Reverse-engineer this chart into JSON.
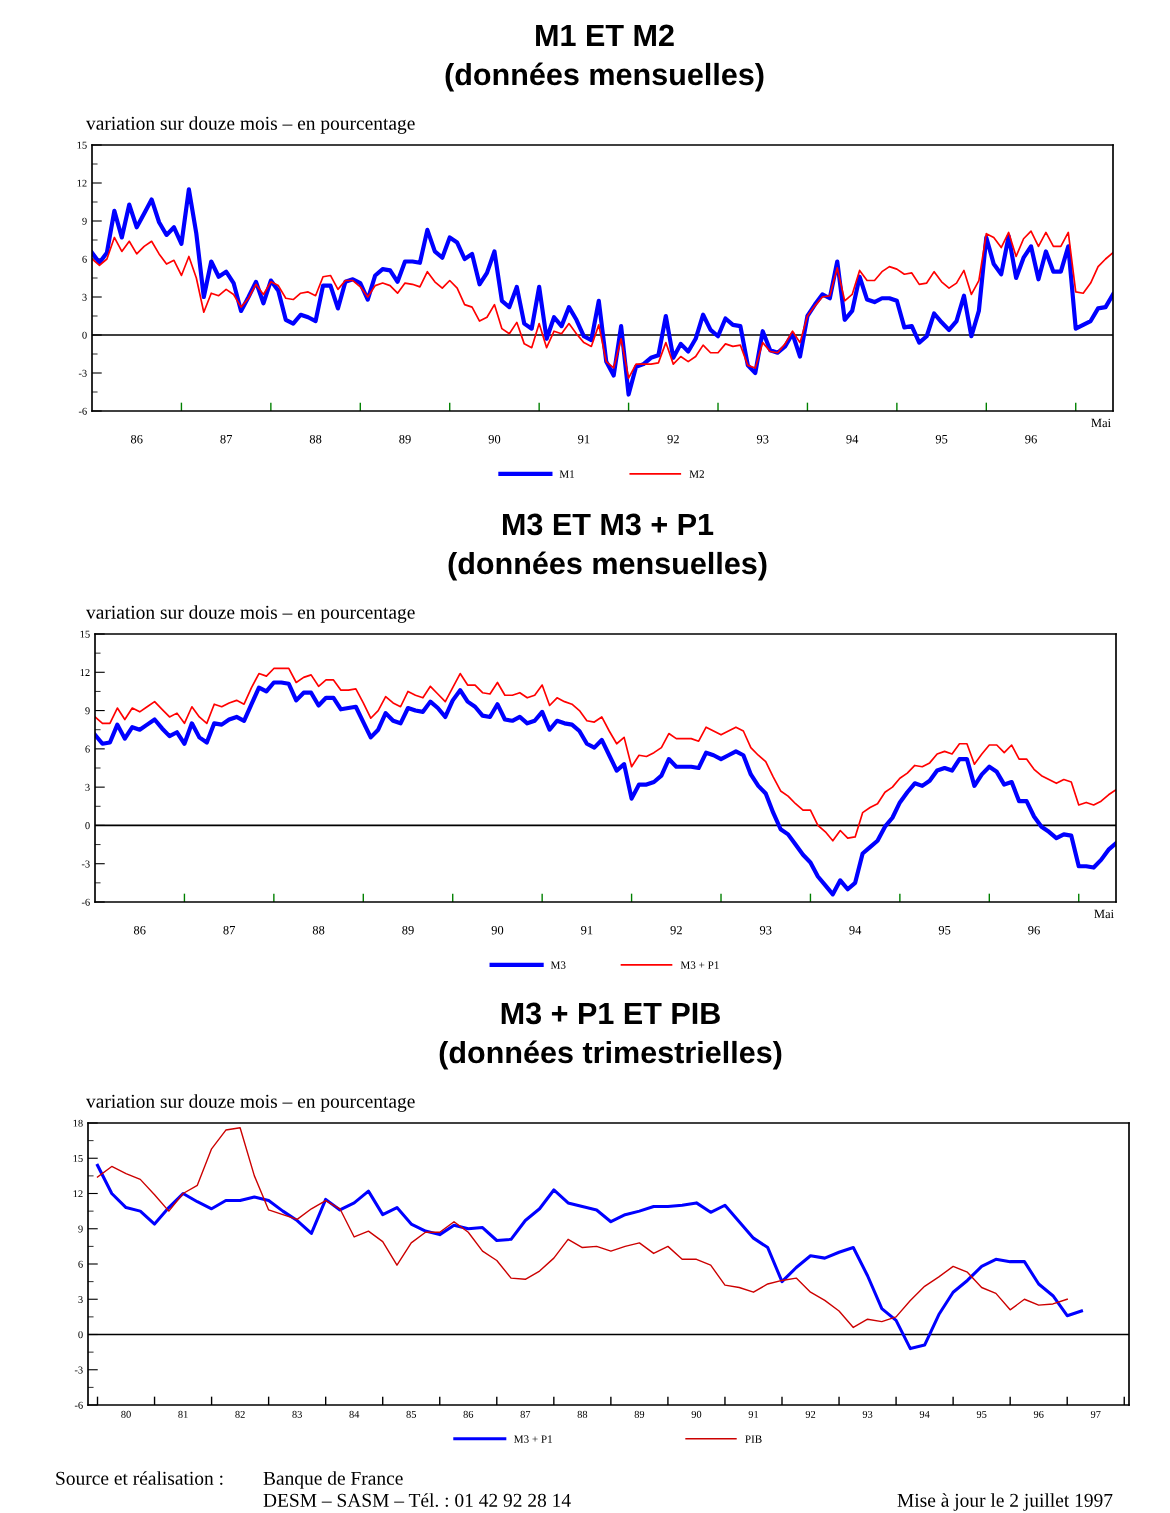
{
  "chart_data": [
    {
      "type": "line",
      "title": "M1 ET M2",
      "subtitle": "(données mensuelles)",
      "ylabel": "variation sur douze mois – en pourcentage",
      "x": [
        "1985-12",
        "1986-01",
        "1986-02",
        "1986-03",
        "1986-04",
        "1986-05",
        "1986-06",
        "1986-07",
        "1986-08",
        "1986-09",
        "1986-10",
        "1986-11",
        "1986-12",
        "1987-01",
        "1987-02",
        "1987-03",
        "1987-04",
        "1987-05",
        "1987-06",
        "1987-07",
        "1987-08",
        "1987-09",
        "1987-10",
        "1987-11",
        "1987-12",
        "1988-01",
        "1988-02",
        "1988-03",
        "1988-04",
        "1988-05",
        "1988-06",
        "1988-07",
        "1988-08",
        "1988-09",
        "1988-10",
        "1988-11",
        "1988-12",
        "1989-01",
        "1989-02",
        "1989-03",
        "1989-04",
        "1989-05",
        "1989-06",
        "1989-07",
        "1989-08",
        "1989-09",
        "1989-10",
        "1989-11",
        "1989-12",
        "1990-01",
        "1990-02",
        "1990-03",
        "1990-04",
        "1990-05",
        "1990-06",
        "1990-07",
        "1990-08",
        "1990-09",
        "1990-10",
        "1990-11",
        "1990-12",
        "1991-01",
        "1991-02",
        "1991-03",
        "1991-04",
        "1991-05",
        "1991-06",
        "1991-07",
        "1991-08",
        "1991-09",
        "1991-10",
        "1991-11",
        "1991-12",
        "1992-01",
        "1992-02",
        "1992-03",
        "1992-04",
        "1992-05",
        "1992-06",
        "1992-07",
        "1992-08",
        "1992-09",
        "1992-10",
        "1992-11",
        "1992-12",
        "1993-01",
        "1993-02",
        "1993-03",
        "1993-04",
        "1993-05",
        "1993-06",
        "1993-07",
        "1993-08",
        "1993-09",
        "1993-10",
        "1993-11",
        "1993-12",
        "1994-01",
        "1994-02",
        "1994-03",
        "1994-04",
        "1994-05",
        "1994-06",
        "1994-07",
        "1994-08",
        "1994-09",
        "1994-10",
        "1994-11",
        "1994-12",
        "1995-01",
        "1995-02",
        "1995-03",
        "1995-04",
        "1995-05",
        "1995-06",
        "1995-07",
        "1995-08",
        "1995-09",
        "1995-10",
        "1995-11",
        "1995-12",
        "1996-01",
        "1996-02",
        "1996-03",
        "1996-04",
        "1996-05",
        "1996-06",
        "1996-07",
        "1996-08",
        "1996-09",
        "1996-10",
        "1996-11",
        "1996-12",
        "1997-01",
        "1997-02",
        "1997-03",
        "1997-04",
        "1997-05"
      ],
      "series": [
        {
          "name": "M1",
          "color": "#0000ff",
          "values": [
            6.5,
            5.7,
            6.5,
            9.8,
            7.7,
            10.3,
            8.5,
            9.6,
            10.7,
            8.9,
            7.9,
            8.5,
            7.2,
            11.5,
            8.0,
            3.0,
            5.8,
            4.6,
            5.0,
            4.1,
            1.9,
            3.0,
            4.2,
            2.5,
            4.3,
            3.5,
            1.2,
            0.9,
            1.6,
            1.4,
            1.1,
            3.9,
            3.9,
            2.1,
            4.2,
            4.4,
            4.1,
            2.8,
            4.7,
            5.2,
            5.1,
            4.2,
            5.8,
            5.8,
            5.7,
            8.3,
            6.6,
            6.1,
            7.7,
            7.3,
            6.0,
            6.4,
            4.0,
            4.9,
            6.6,
            2.7,
            2.2,
            3.8,
            0.9,
            0.5,
            3.8,
            -0.3,
            1.4,
            0.7,
            2.2,
            1.2,
            -0.1,
            -0.4,
            2.7,
            -2.1,
            -3.2,
            0.7,
            -4.7,
            -2.5,
            -2.3,
            -1.8,
            -1.6,
            1.5,
            -1.8,
            -0.7,
            -1.3,
            -0.3,
            1.6,
            0.4,
            -0.1,
            1.3,
            0.8,
            0.7,
            -2.4,
            -3.0,
            0.3,
            -1.2,
            -1.4,
            -0.9,
            0.1,
            -1.7,
            1.5,
            2.4,
            3.2,
            2.9,
            5.8,
            1.2,
            1.9,
            4.6,
            2.8,
            2.6,
            2.9,
            2.9,
            2.7,
            0.6,
            0.7,
            -0.6,
            -0.1,
            1.7,
            1.0,
            0.4,
            1.1,
            3.1,
            -0.1,
            1.9,
            7.7,
            5.6,
            4.8,
            7.8,
            4.5,
            6.1,
            7.0,
            4.4,
            6.6,
            5.0,
            5.0,
            7.0,
            0.5,
            0.8,
            1.1,
            2.1,
            2.2,
            3.2
          ]
        },
        {
          "name": "M2",
          "color": "#ff0000",
          "values": [
            6.0,
            5.5,
            6.0,
            7.7,
            6.6,
            7.4,
            6.4,
            7.0,
            7.4,
            6.4,
            5.6,
            5.9,
            4.7,
            6.2,
            4.5,
            1.8,
            3.3,
            3.1,
            3.6,
            3.2,
            2.2,
            2.9,
            4.0,
            3.2,
            4.2,
            3.9,
            2.9,
            2.8,
            3.3,
            3.4,
            3.1,
            4.6,
            4.7,
            3.6,
            4.3,
            4.3,
            3.8,
            3.0,
            3.9,
            4.1,
            3.9,
            3.3,
            4.1,
            4.0,
            3.8,
            5.0,
            4.2,
            3.7,
            4.3,
            3.7,
            2.4,
            2.2,
            1.1,
            1.4,
            2.4,
            0.5,
            0.1,
            1.0,
            -0.7,
            -1.0,
            0.9,
            -1.0,
            0.3,
            0.1,
            0.9,
            0.1,
            -0.6,
            -0.9,
            0.8,
            -2.1,
            -2.6,
            -0.3,
            -3.4,
            -2.3,
            -2.3,
            -2.3,
            -2.2,
            -0.6,
            -2.3,
            -1.7,
            -2.1,
            -1.7,
            -0.8,
            -1.4,
            -1.4,
            -0.7,
            -0.9,
            -0.8,
            -2.4,
            -2.6,
            -0.6,
            -1.3,
            -1.4,
            -0.7,
            0.3,
            -0.6,
            1.5,
            2.3,
            3.0,
            3.1,
            5.3,
            2.7,
            3.2,
            5.1,
            4.3,
            4.3,
            5.0,
            5.4,
            5.2,
            4.8,
            4.9,
            4.0,
            4.1,
            5.0,
            4.2,
            3.7,
            4.1,
            5.1,
            3.2,
            4.3,
            8.0,
            7.7,
            6.9,
            8.1,
            6.2,
            7.6,
            8.2,
            7.0,
            8.1,
            7.0,
            7.0,
            8.1,
            3.4,
            3.3,
            4.1,
            5.4,
            6.0,
            6.5
          ]
        }
      ],
      "xlim": [
        "1985-12",
        "1997-05"
      ],
      "ylim": [
        -6,
        15
      ],
      "yticks": [
        -6,
        -3,
        0,
        3,
        6,
        9,
        12,
        15
      ],
      "xticks": [
        {
          "value": "1986-06",
          "label": "86"
        },
        {
          "value": "1987-06",
          "label": "87"
        },
        {
          "value": "1988-06",
          "label": "88"
        },
        {
          "value": "1989-06",
          "label": "89"
        },
        {
          "value": "1990-06",
          "label": "90"
        },
        {
          "value": "1991-06",
          "label": "91"
        },
        {
          "value": "1992-06",
          "label": "92"
        },
        {
          "value": "1993-06",
          "label": "93"
        },
        {
          "value": "1994-06",
          "label": "94"
        },
        {
          "value": "1995-06",
          "label": "95"
        },
        {
          "value": "1996-06",
          "label": "96"
        },
        {
          "value": "1986-12",
          "label": null
        },
        {
          "value": "1987-12",
          "label": null
        },
        {
          "value": "1988-12",
          "label": null
        },
        {
          "value": "1989-12",
          "label": null
        },
        {
          "value": "1990-12",
          "label": null
        },
        {
          "value": "1991-12",
          "label": null
        },
        {
          "value": "1992-12",
          "label": null
        },
        {
          "value": "1993-12",
          "label": null
        },
        {
          "value": "1994-12",
          "label": null
        },
        {
          "value": "1995-12",
          "label": null
        },
        {
          "value": "1996-12",
          "label": null
        }
      ],
      "ref_lines": [
        {
          "axis": "y",
          "value": 0,
          "color": "#000000"
        }
      ],
      "legend": "bottom",
      "annotations": [
        "Mai"
      ]
    },
    {
      "type": "line",
      "title": "M3 ET M3 + P1",
      "subtitle": "(données mensuelles)",
      "ylabel": "variation sur douze mois – en pourcentage",
      "x": [
        "1985-12",
        "1986-01",
        "1986-02",
        "1986-03",
        "1986-04",
        "1986-05",
        "1986-06",
        "1986-07",
        "1986-08",
        "1986-09",
        "1986-10",
        "1986-11",
        "1986-12",
        "1987-01",
        "1987-02",
        "1987-03",
        "1987-04",
        "1987-05",
        "1987-06",
        "1987-07",
        "1987-08",
        "1987-09",
        "1987-10",
        "1987-11",
        "1987-12",
        "1988-01",
        "1988-02",
        "1988-03",
        "1988-04",
        "1988-05",
        "1988-06",
        "1988-07",
        "1988-08",
        "1988-09",
        "1988-10",
        "1988-11",
        "1988-12",
        "1989-01",
        "1989-02",
        "1989-03",
        "1989-04",
        "1989-05",
        "1989-06",
        "1989-07",
        "1989-08",
        "1989-09",
        "1989-10",
        "1989-11",
        "1989-12",
        "1990-01",
        "1990-02",
        "1990-03",
        "1990-04",
        "1990-05",
        "1990-06",
        "1990-07",
        "1990-08",
        "1990-09",
        "1990-10",
        "1990-11",
        "1990-12",
        "1991-01",
        "1991-02",
        "1991-03",
        "1991-04",
        "1991-05",
        "1991-06",
        "1991-07",
        "1991-08",
        "1991-09",
        "1991-10",
        "1991-11",
        "1991-12",
        "1992-01",
        "1992-02",
        "1992-03",
        "1992-04",
        "1992-05",
        "1992-06",
        "1992-07",
        "1992-08",
        "1992-09",
        "1992-10",
        "1992-11",
        "1992-12",
        "1993-01",
        "1993-02",
        "1993-03",
        "1993-04",
        "1993-05",
        "1993-06",
        "1993-07",
        "1993-08",
        "1993-09",
        "1993-10",
        "1993-11",
        "1993-12",
        "1994-01",
        "1994-02",
        "1994-03",
        "1994-04",
        "1994-05",
        "1994-06",
        "1994-07",
        "1994-08",
        "1994-09",
        "1994-10",
        "1994-11",
        "1994-12",
        "1995-01",
        "1995-02",
        "1995-03",
        "1995-04",
        "1995-05",
        "1995-06",
        "1995-07",
        "1995-08",
        "1995-09",
        "1995-10",
        "1995-11",
        "1995-12",
        "1996-01",
        "1996-02",
        "1996-03",
        "1996-04",
        "1996-05",
        "1996-06",
        "1996-07",
        "1996-08",
        "1996-09",
        "1996-10",
        "1996-11",
        "1996-12",
        "1997-01",
        "1997-02",
        "1997-03",
        "1997-04",
        "1997-05"
      ],
      "series": [
        {
          "name": "M3",
          "color": "#0000ff",
          "values": [
            7.1,
            6.4,
            6.5,
            7.9,
            6.8,
            7.7,
            7.5,
            7.9,
            8.3,
            7.6,
            7.0,
            7.3,
            6.4,
            8.0,
            6.9,
            6.5,
            8.0,
            7.9,
            8.3,
            8.5,
            8.2,
            9.5,
            10.8,
            10.5,
            11.2,
            11.2,
            11.1,
            9.8,
            10.4,
            10.4,
            9.4,
            10.0,
            10.0,
            9.1,
            9.2,
            9.3,
            8.1,
            6.9,
            7.5,
            8.8,
            8.2,
            8.0,
            9.2,
            9.0,
            8.9,
            9.7,
            9.2,
            8.5,
            9.8,
            10.6,
            9.7,
            9.3,
            8.6,
            8.5,
            9.5,
            8.3,
            8.2,
            8.5,
            8.0,
            8.2,
            8.9,
            7.5,
            8.2,
            8.0,
            7.9,
            7.4,
            6.4,
            6.1,
            6.7,
            5.5,
            4.3,
            4.8,
            2.1,
            3.2,
            3.2,
            3.4,
            3.9,
            5.2,
            4.6,
            4.6,
            4.6,
            4.5,
            5.7,
            5.5,
            5.2,
            5.5,
            5.8,
            5.5,
            4.0,
            3.1,
            2.5,
            1.0,
            -0.3,
            -0.7,
            -1.5,
            -2.3,
            -2.9,
            -4.0,
            -4.7,
            -5.4,
            -4.3,
            -5.0,
            -4.5,
            -2.2,
            -1.7,
            -1.2,
            -0.1,
            0.6,
            1.8,
            2.6,
            3.3,
            3.1,
            3.5,
            4.3,
            4.5,
            4.3,
            5.2,
            5.2,
            3.1,
            4.0,
            4.6,
            4.2,
            3.2,
            3.4,
            1.9,
            1.9,
            0.7,
            -0.1,
            -0.5,
            -1.0,
            -0.7,
            -0.8,
            -3.2,
            -3.2,
            -3.3,
            -2.7,
            -1.9,
            -1.4
          ]
        },
        {
          "name": "M3 + P1",
          "color": "#ff0000",
          "values": [
            8.5,
            8.0,
            8.0,
            9.2,
            8.3,
            9.2,
            8.9,
            9.3,
            9.7,
            9.1,
            8.5,
            8.8,
            8.0,
            9.3,
            8.5,
            8.0,
            9.5,
            9.3,
            9.6,
            9.8,
            9.5,
            10.8,
            11.9,
            11.7,
            12.3,
            12.3,
            12.3,
            11.2,
            11.6,
            11.8,
            10.9,
            11.4,
            11.4,
            10.6,
            10.6,
            10.7,
            9.6,
            8.4,
            9.0,
            10.1,
            9.6,
            9.3,
            10.5,
            10.2,
            10.0,
            10.9,
            10.3,
            9.7,
            10.8,
            11.9,
            11.0,
            11.0,
            10.4,
            10.3,
            11.2,
            10.2,
            10.2,
            10.4,
            10.0,
            10.2,
            11.0,
            9.4,
            10.0,
            9.7,
            9.5,
            9.0,
            8.2,
            8.1,
            8.5,
            7.4,
            6.4,
            6.9,
            4.6,
            5.5,
            5.4,
            5.7,
            6.1,
            7.2,
            6.8,
            6.8,
            6.8,
            6.6,
            7.7,
            7.4,
            7.1,
            7.4,
            7.7,
            7.4,
            6.1,
            5.5,
            5.0,
            3.8,
            2.7,
            2.3,
            1.7,
            1.2,
            1.2,
            0.0,
            -0.5,
            -1.2,
            -0.4,
            -1.0,
            -0.9,
            1.0,
            1.4,
            1.7,
            2.6,
            3.0,
            3.7,
            4.1,
            4.7,
            4.6,
            4.9,
            5.6,
            5.8,
            5.6,
            6.4,
            6.4,
            4.8,
            5.6,
            6.3,
            6.3,
            5.7,
            6.3,
            5.2,
            5.2,
            4.4,
            3.9,
            3.6,
            3.3,
            3.6,
            3.4,
            1.6,
            1.8,
            1.6,
            1.9,
            2.4,
            2.8
          ]
        }
      ],
      "xlim": [
        "1985-12",
        "1997-05"
      ],
      "ylim": [
        -6,
        15
      ],
      "yticks": [
        -6,
        -3,
        0,
        3,
        6,
        9,
        12,
        15
      ],
      "xticks": [
        {
          "value": "1986-06",
          "label": "86"
        },
        {
          "value": "1987-06",
          "label": "87"
        },
        {
          "value": "1988-06",
          "label": "88"
        },
        {
          "value": "1989-06",
          "label": "89"
        },
        {
          "value": "1990-06",
          "label": "90"
        },
        {
          "value": "1991-06",
          "label": "91"
        },
        {
          "value": "1992-06",
          "label": "92"
        },
        {
          "value": "1993-06",
          "label": "93"
        },
        {
          "value": "1994-06",
          "label": "94"
        },
        {
          "value": "1995-06",
          "label": "95"
        },
        {
          "value": "1996-06",
          "label": "96"
        },
        {
          "value": "1986-12",
          "label": null
        },
        {
          "value": "1987-12",
          "label": null
        },
        {
          "value": "1988-12",
          "label": null
        },
        {
          "value": "1989-12",
          "label": null
        },
        {
          "value": "1990-12",
          "label": null
        },
        {
          "value": "1991-12",
          "label": null
        },
        {
          "value": "1992-12",
          "label": null
        },
        {
          "value": "1993-12",
          "label": null
        },
        {
          "value": "1994-12",
          "label": null
        },
        {
          "value": "1995-12",
          "label": null
        },
        {
          "value": "1996-12",
          "label": null
        }
      ],
      "ref_lines": [
        {
          "axis": "y",
          "value": 0,
          "color": "#000000"
        }
      ],
      "legend": "bottom",
      "annotations": [
        "Mai"
      ]
    },
    {
      "type": "line",
      "title": "M3 + P1 ET PIB",
      "subtitle": "(données trimestrielles)",
      "ylabel": "variation sur douze mois – en pourcentage",
      "x": [
        "1979-12",
        "1980-03",
        "1980-06",
        "1980-09",
        "1980-12",
        "1981-03",
        "1981-06",
        "1981-09",
        "1981-12",
        "1982-03",
        "1982-06",
        "1982-09",
        "1982-12",
        "1983-03",
        "1983-06",
        "1983-09",
        "1983-12",
        "1984-03",
        "1984-06",
        "1984-09",
        "1984-12",
        "1985-03",
        "1985-06",
        "1985-09",
        "1985-12",
        "1986-03",
        "1986-06",
        "1986-09",
        "1986-12",
        "1987-03",
        "1987-06",
        "1987-09",
        "1987-12",
        "1988-03",
        "1988-06",
        "1988-09",
        "1988-12",
        "1989-03",
        "1989-06",
        "1989-09",
        "1989-12",
        "1990-03",
        "1990-06",
        "1990-09",
        "1990-12",
        "1991-03",
        "1991-06",
        "1991-09",
        "1991-12",
        "1992-03",
        "1992-06",
        "1992-09",
        "1992-12",
        "1993-03",
        "1993-06",
        "1993-09",
        "1993-12",
        "1994-03",
        "1994-06",
        "1994-09",
        "1994-12",
        "1995-03",
        "1995-06",
        "1995-09",
        "1995-12",
        "1996-03",
        "1996-06",
        "1996-09",
        "1996-12",
        "1997-03"
      ],
      "series": [
        {
          "name": "M3 + P1",
          "color": "#0000ff",
          "values": [
            14.4,
            12.0,
            10.8,
            10.5,
            9.4,
            10.8,
            12.0,
            11.3,
            10.7,
            11.4,
            11.4,
            11.7,
            11.4,
            10.5,
            9.7,
            8.6,
            11.5,
            10.6,
            11.2,
            12.2,
            10.2,
            10.8,
            9.4,
            8.8,
            8.5,
            9.3,
            9.0,
            9.1,
            8.0,
            8.1,
            9.7,
            10.7,
            12.3,
            11.2,
            10.9,
            10.6,
            9.6,
            10.2,
            10.5,
            10.9,
            10.9,
            11.0,
            11.2,
            10.4,
            11.0,
            9.6,
            8.2,
            7.4,
            4.5,
            5.7,
            6.7,
            6.5,
            7.0,
            7.4,
            5.0,
            2.2,
            1.2,
            -1.2,
            -0.9,
            1.7,
            3.6,
            4.6,
            5.8,
            6.4,
            6.2,
            6.2,
            4.3,
            3.3,
            1.6,
            2.0
          ]
        },
        {
          "name": "PIB",
          "color": "#cc0000",
          "values": [
            13.4,
            14.3,
            13.7,
            13.2,
            11.9,
            10.5,
            12.0,
            12.7,
            15.8,
            17.4,
            17.6,
            13.5,
            10.6,
            10.2,
            9.8,
            10.7,
            11.4,
            10.7,
            8.3,
            8.8,
            7.9,
            5.9,
            7.8,
            8.7,
            8.7,
            9.6,
            8.7,
            7.1,
            6.3,
            4.8,
            4.7,
            5.4,
            6.5,
            8.1,
            7.4,
            7.5,
            7.1,
            7.5,
            7.8,
            6.9,
            7.5,
            6.4,
            6.4,
            5.9,
            4.2,
            4.0,
            3.6,
            4.3,
            4.6,
            4.8,
            3.6,
            2.9,
            2.0,
            0.6,
            1.3,
            1.1,
            1.5,
            2.9,
            4.1,
            4.9,
            5.8,
            5.3,
            4.0,
            3.5,
            2.1,
            3.0,
            2.5,
            2.6,
            3.0,
            null
          ]
        }
      ],
      "xlim": [
        "1979-10",
        "1998-01"
      ],
      "ylim": [
        -6,
        18
      ],
      "yticks": [
        -6,
        -3,
        0,
        3,
        6,
        9,
        12,
        15,
        18
      ],
      "xticks": [
        {
          "value": "1980-06",
          "label": "80"
        },
        {
          "value": "1981-06",
          "label": "81"
        },
        {
          "value": "1982-06",
          "label": "82"
        },
        {
          "value": "1983-06",
          "label": "83"
        },
        {
          "value": "1984-06",
          "label": "84"
        },
        {
          "value": "1985-06",
          "label": "85"
        },
        {
          "value": "1986-06",
          "label": "86"
        },
        {
          "value": "1987-06",
          "label": "87"
        },
        {
          "value": "1988-06",
          "label": "88"
        },
        {
          "value": "1989-06",
          "label": "89"
        },
        {
          "value": "1990-06",
          "label": "90"
        },
        {
          "value": "1991-06",
          "label": "91"
        },
        {
          "value": "1992-06",
          "label": "92"
        },
        {
          "value": "1993-06",
          "label": "93"
        },
        {
          "value": "1994-06",
          "label": "94"
        },
        {
          "value": "1995-06",
          "label": "95"
        },
        {
          "value": "1996-06",
          "label": "96"
        },
        {
          "value": "1997-06",
          "label": "97"
        },
        {
          "value": "1979-12",
          "label": null
        },
        {
          "value": "1980-12",
          "label": null
        },
        {
          "value": "1981-12",
          "label": null
        },
        {
          "value": "1982-12",
          "label": null
        },
        {
          "value": "1983-12",
          "label": null
        },
        {
          "value": "1984-12",
          "label": null
        },
        {
          "value": "1985-12",
          "label": null
        },
        {
          "value": "1986-12",
          "label": null
        },
        {
          "value": "1987-12",
          "label": null
        },
        {
          "value": "1988-12",
          "label": null
        },
        {
          "value": "1989-12",
          "label": null
        },
        {
          "value": "1990-12",
          "label": null
        },
        {
          "value": "1991-12",
          "label": null
        },
        {
          "value": "1992-12",
          "label": null
        },
        {
          "value": "1993-12",
          "label": null
        },
        {
          "value": "1994-12",
          "label": null
        },
        {
          "value": "1995-12",
          "label": null
        },
        {
          "value": "1996-12",
          "label": null
        },
        {
          "value": "1997-12",
          "label": null
        }
      ],
      "ref_lines": [
        {
          "axis": "y",
          "value": 0,
          "color": "#000000"
        }
      ],
      "legend": "bottom",
      "annotations": [
        "Source et réalisation :",
        "Banque de France",
        "DESM – SASM – Tél. : 01 42 92 28 14",
        "Mise à jour le 2 juillet 1997"
      ]
    }
  ]
}
